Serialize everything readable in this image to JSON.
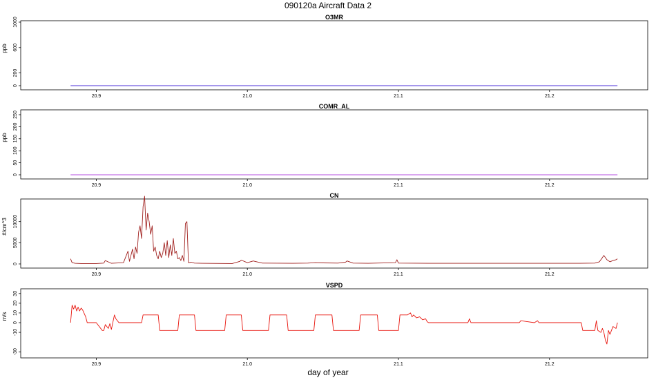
{
  "figure": {
    "title": "090120a   Aircraft Data 2",
    "xlabel": "day of year"
  },
  "chart_data": [
    {
      "type": "line",
      "title": "O3MR",
      "ylabel": "ppb",
      "xlim": [
        20.85,
        21.265
      ],
      "ylim": [
        0,
        1000
      ],
      "x_ticks": [
        "20.9",
        "21.0",
        "21.1",
        "21.2"
      ],
      "y_ticks": [
        "0",
        "200",
        "600",
        "1000"
      ],
      "color": "#4B2FD8",
      "series": [
        {
          "x": [
            20.883,
            21.245
          ],
          "values": [
            0,
            0
          ]
        }
      ]
    },
    {
      "type": "line",
      "title": "COMR_AL",
      "ylabel": "ppb",
      "xlim": [
        20.85,
        21.265
      ],
      "ylim": [
        0,
        250
      ],
      "x_ticks": [
        "20.9",
        "21.0",
        "21.1",
        "21.2"
      ],
      "y_ticks": [
        "0",
        "50",
        "100",
        "150",
        "200",
        "250"
      ],
      "color": "#B44FE0",
      "series": [
        {
          "x": [
            20.883,
            21.245
          ],
          "values": [
            0,
            0
          ]
        }
      ]
    },
    {
      "type": "line",
      "title": "CN",
      "ylabel": "#/cm^3",
      "xlim": [
        20.85,
        21.265
      ],
      "ylim": [
        0,
        15000
      ],
      "x_ticks": [
        "20.9",
        "21.0",
        "21.1",
        "21.2"
      ],
      "y_ticks": [
        "0",
        "5000",
        "10000"
      ],
      "color": "#A0201E",
      "series": [
        {
          "x": [
            20.883,
            20.884,
            20.886,
            20.89,
            20.9,
            20.905,
            20.906,
            20.91,
            20.918,
            20.921,
            20.922,
            20.924,
            20.925,
            20.926,
            20.927,
            20.928,
            20.929,
            20.93,
            20.931,
            20.932,
            20.933,
            20.934,
            20.935,
            20.936,
            20.937,
            20.938,
            20.939,
            20.94,
            20.941,
            20.942,
            20.943,
            20.944,
            20.945,
            20.946,
            20.947,
            20.948,
            20.949,
            20.95,
            20.951,
            20.952,
            20.953,
            20.954,
            20.955,
            20.956,
            20.957,
            20.958,
            20.959,
            20.96,
            20.961,
            20.963,
            20.965,
            20.97,
            20.99,
            20.995,
            20.996,
            21.0,
            21.004,
            21.005,
            21.01,
            21.03,
            21.04,
            21.045,
            21.05,
            21.06,
            21.065,
            21.066,
            21.07,
            21.08,
            21.098,
            21.099,
            21.1,
            21.12,
            21.14,
            21.16,
            21.18,
            21.2,
            21.22,
            21.23,
            21.233,
            21.235,
            21.236,
            21.238,
            21.24,
            21.242,
            21.244,
            21.245
          ],
          "values": [
            1200,
            300,
            150,
            100,
            100,
            200,
            800,
            150,
            300,
            3000,
            600,
            3500,
            1200,
            4000,
            2500,
            7500,
            9000,
            6000,
            13500,
            16000,
            8000,
            12000,
            10000,
            7000,
            9000,
            3000,
            4000,
            2000,
            1200,
            3000,
            1500,
            2500,
            5000,
            2000,
            5500,
            1500,
            4500,
            2000,
            6000,
            2500,
            3000,
            1200,
            1500,
            800,
            2000,
            600,
            9500,
            10000,
            300,
            400,
            200,
            150,
            100,
            600,
            900,
            300,
            700,
            600,
            200,
            150,
            200,
            300,
            250,
            200,
            400,
            700,
            200,
            150,
            300,
            1000,
            200,
            150,
            150,
            150,
            150,
            150,
            150,
            200,
            500,
            1500,
            2000,
            1000,
            500,
            800,
            1000,
            1200
          ]
        }
      ]
    },
    {
      "type": "line",
      "title": "VSPD",
      "ylabel": "m/s",
      "xlim": [
        20.85,
        21.265
      ],
      "ylim": [
        -32,
        32
      ],
      "x_ticks": [
        "20.9",
        "21.0",
        "21.1",
        "21.2"
      ],
      "y_ticks": [
        "-30",
        "-10",
        "0",
        "10",
        "20",
        "30"
      ],
      "color": "#E8140C",
      "series": [
        {
          "x": [
            20.883,
            20.884,
            20.885,
            20.886,
            20.887,
            20.888,
            20.889,
            20.89,
            20.891,
            20.893,
            20.894,
            20.9,
            20.904,
            20.905,
            20.906,
            20.908,
            20.909,
            20.91,
            20.912,
            20.913,
            20.915,
            20.92,
            20.92,
            20.93,
            20.931,
            20.941,
            20.942,
            20.954,
            20.955,
            20.965,
            20.966,
            20.971,
            20.972,
            20.985,
            20.986,
            20.996,
            20.997,
            21.0,
            21.001,
            21.014,
            21.015,
            21.026,
            21.027,
            21.03,
            21.031,
            21.044,
            21.045,
            21.056,
            21.057,
            21.06,
            21.061,
            21.074,
            21.075,
            21.086,
            21.087,
            21.09,
            21.091,
            21.1,
            21.101,
            21.102,
            21.104,
            21.106,
            21.108,
            21.109,
            21.11,
            21.112,
            21.114,
            21.116,
            21.118,
            21.119,
            21.12,
            21.13,
            21.146,
            21.147,
            21.148,
            21.16,
            21.18,
            21.181,
            21.19,
            21.192,
            21.193,
            21.21,
            21.221,
            21.222,
            21.23,
            21.231,
            21.232,
            21.234,
            21.235,
            21.236,
            21.237,
            21.238,
            21.239,
            21.24,
            21.242,
            21.244,
            21.245
          ],
          "values": [
            0,
            18,
            14,
            18,
            12,
            16,
            12,
            15,
            13,
            6,
            0,
            0,
            -8,
            -8,
            -2,
            -6,
            -1,
            -7,
            8,
            4,
            0,
            0,
            0,
            0,
            8,
            8,
            -8,
            -8,
            8,
            8,
            -8,
            -8,
            -8,
            -8,
            8,
            8,
            -8,
            -8,
            -8,
            -8,
            8,
            8,
            -8,
            -8,
            -8,
            -8,
            8,
            8,
            -8,
            -8,
            -8,
            -8,
            8,
            8,
            -8,
            -8,
            -8,
            -8,
            8,
            8,
            8,
            8,
            10,
            6,
            8,
            5,
            6,
            3,
            4,
            1,
            0,
            0,
            0,
            4,
            0,
            0,
            0,
            2,
            0,
            2,
            0,
            0,
            0,
            -8,
            -8,
            2,
            -8,
            -10,
            -6,
            -10,
            -18,
            -22,
            -8,
            -12,
            -4,
            -6,
            0
          ]
        }
      ]
    }
  ]
}
